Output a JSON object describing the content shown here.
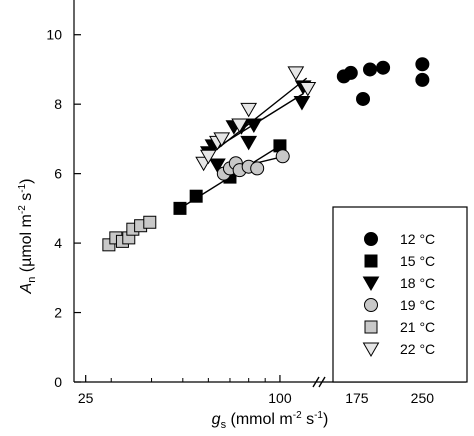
{
  "chart_data": {
    "type": "scatter",
    "x_scale": "log",
    "xlabel": {
      "main": "g",
      "sub": "s",
      "unit": " (mmol m",
      "sup1": "-2",
      "mid": " s",
      "sup2": "-1",
      "close": ")"
    },
    "ylabel": {
      "main": "A",
      "sub": "n",
      "unit": " (µmol m",
      "sup1": "-2",
      "mid": " s",
      "sup2": "-1",
      "close": ")"
    },
    "xlim": [
      23,
      300
    ],
    "ylim": [
      0,
      11
    ],
    "x_ticks": [
      25,
      100,
      175,
      250
    ],
    "y_ticks": [
      0,
      2,
      4,
      6,
      8,
      10
    ],
    "axis_break": true,
    "legend": {
      "position": "right",
      "title": ""
    },
    "series": [
      {
        "name": "12 °C",
        "marker": "circle",
        "fill": "#000000",
        "points": [
          [
            160,
            8.8
          ],
          [
            168,
            8.9
          ],
          [
            182,
            8.15
          ],
          [
            190,
            9.0
          ],
          [
            205,
            9.05
          ],
          [
            250,
            9.15
          ],
          [
            250,
            8.7
          ]
        ]
      },
      {
        "name": "15 °C",
        "marker": "square",
        "fill": "#000000",
        "points": [
          [
            49,
            5.0
          ],
          [
            55,
            5.35
          ],
          [
            70,
            5.9
          ],
          [
            100,
            6.8
          ]
        ],
        "fit": [
          [
            49,
            5.0
          ],
          [
            100,
            6.8
          ]
        ]
      },
      {
        "name": "18 °C",
        "marker": "triangle-down",
        "fill": "#000000",
        "points": [
          [
            60,
            6.6
          ],
          [
            62,
            6.8
          ],
          [
            64,
            6.25
          ],
          [
            72,
            7.35
          ],
          [
            76,
            7.35
          ],
          [
            80,
            6.9
          ],
          [
            83,
            7.4
          ],
          [
            117,
            8.05
          ],
          [
            118,
            8.5
          ]
        ],
        "fit": [
          [
            60,
            6.6
          ],
          [
            118,
            8.3
          ]
        ]
      },
      {
        "name": "19 °C",
        "marker": "circle",
        "fill": "#c8c8c8",
        "points": [
          [
            67,
            6.0
          ],
          [
            70,
            6.15
          ],
          [
            73,
            6.3
          ],
          [
            75,
            6.1
          ],
          [
            80,
            6.2
          ],
          [
            85,
            6.15
          ],
          [
            102,
            6.5
          ]
        ],
        "fit": [
          [
            65,
            6.05
          ],
          [
            103,
            6.5
          ]
        ]
      },
      {
        "name": "21 °C",
        "marker": "square",
        "fill": "#c8c8c8",
        "points": [
          [
            29.5,
            3.95
          ],
          [
            31,
            4.15
          ],
          [
            32.5,
            4.05
          ],
          [
            34,
            4.15
          ],
          [
            35,
            4.4
          ],
          [
            37,
            4.5
          ],
          [
            39.5,
            4.6
          ]
        ],
        "fit": [
          [
            29.5,
            3.95
          ],
          [
            39.5,
            4.55
          ]
        ]
      },
      {
        "name": "22 °C",
        "marker": "triangle-down",
        "fill": "#e6e6e6",
        "points": [
          [
            58,
            6.3
          ],
          [
            60,
            6.5
          ],
          [
            64,
            6.9
          ],
          [
            66,
            7.0
          ],
          [
            75,
            7.4
          ],
          [
            80,
            7.85
          ],
          [
            112,
            8.9
          ],
          [
            122,
            8.45
          ]
        ],
        "fit": [
          [
            58,
            6.4
          ],
          [
            121,
            8.75
          ]
        ]
      }
    ]
  }
}
